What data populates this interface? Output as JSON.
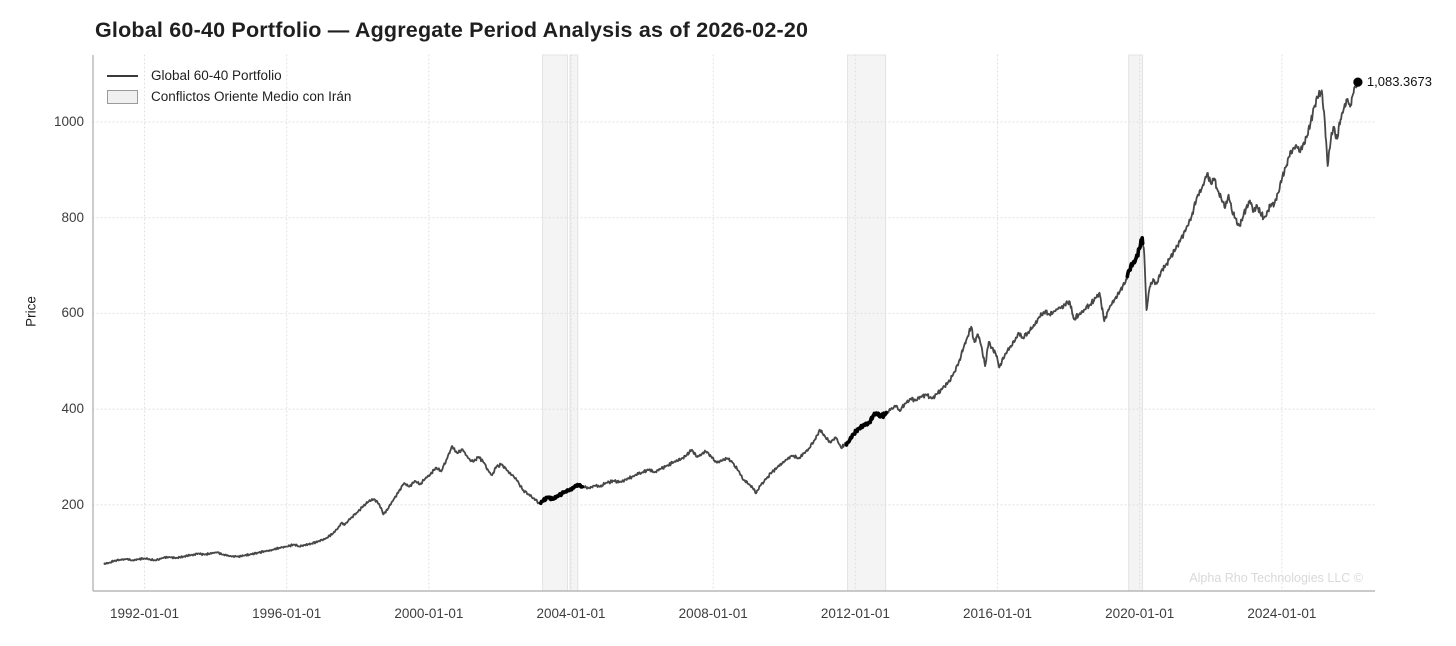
{
  "title": "Global 60-40 Portfolio — Aggregate Period Analysis as of 2026-02-20",
  "watermark": "Alpha Rho Technologies LLC ©",
  "legend": {
    "series_label": "Global 60-40 Portfolio",
    "band_label": "Conflictos Oriente Medio con Irán"
  },
  "annotation": {
    "label": "1,083.3673"
  },
  "colors": {
    "line": "#474747",
    "highlight_line": "#000000",
    "band_fill": "#f4f4f4",
    "band_stroke": "#e3e3e3",
    "grid": "#dedede",
    "spine": "#ababab",
    "tick_text": "#3d3d3d",
    "title_text": "#1f1f1f",
    "watermark_text": "#d9d9d9"
  },
  "chart_data": {
    "type": "line",
    "title": "Global 60-40 Portfolio — Aggregate Period Analysis as of 2026-02-20",
    "xlabel": "",
    "ylabel": "Price",
    "grid": true,
    "legend_position": "top-left",
    "x_tick_labels": [
      "1992-01-01",
      "1996-01-01",
      "2000-01-01",
      "2004-01-01",
      "2008-01-01",
      "2012-01-01",
      "2016-01-01",
      "2020-01-01",
      "2024-01-01"
    ],
    "y_ticks": [
      200,
      400,
      600,
      800,
      1000
    ],
    "x_range": [
      1990.55,
      2026.62
    ],
    "y_range": [
      20,
      1140
    ],
    "series": [
      {
        "name": "Global 60-40 Portfolio",
        "points": [
          [
            1990.85,
            76
          ],
          [
            1991.0,
            79
          ],
          [
            1991.15,
            83
          ],
          [
            1991.3,
            85
          ],
          [
            1991.5,
            87
          ],
          [
            1991.65,
            84
          ],
          [
            1991.8,
            86
          ],
          [
            1992.0,
            88
          ],
          [
            1992.15,
            86
          ],
          [
            1992.3,
            84
          ],
          [
            1992.5,
            89
          ],
          [
            1992.7,
            91
          ],
          [
            1992.9,
            89
          ],
          [
            1993.1,
            92
          ],
          [
            1993.3,
            95
          ],
          [
            1993.5,
            98
          ],
          [
            1993.7,
            96
          ],
          [
            1993.9,
            99
          ],
          [
            1994.05,
            101
          ],
          [
            1994.2,
            96
          ],
          [
            1994.4,
            93
          ],
          [
            1994.6,
            92
          ],
          [
            1994.8,
            94
          ],
          [
            1995.0,
            97
          ],
          [
            1995.2,
            100
          ],
          [
            1995.4,
            103
          ],
          [
            1995.6,
            106
          ],
          [
            1995.8,
            110
          ],
          [
            1996.0,
            113
          ],
          [
            1996.2,
            117
          ],
          [
            1996.35,
            113
          ],
          [
            1996.5,
            116
          ],
          [
            1996.7,
            119
          ],
          [
            1996.9,
            124
          ],
          [
            1997.1,
            130
          ],
          [
            1997.3,
            140
          ],
          [
            1997.45,
            152
          ],
          [
            1997.55,
            163
          ],
          [
            1997.62,
            158
          ],
          [
            1997.8,
            172
          ],
          [
            1998.0,
            185
          ],
          [
            1998.15,
            197
          ],
          [
            1998.3,
            207
          ],
          [
            1998.45,
            212
          ],
          [
            1998.6,
            202
          ],
          [
            1998.72,
            180
          ],
          [
            1998.85,
            192
          ],
          [
            1999.0,
            210
          ],
          [
            1999.15,
            228
          ],
          [
            1999.3,
            245
          ],
          [
            1999.45,
            238
          ],
          [
            1999.6,
            250
          ],
          [
            1999.75,
            243
          ],
          [
            1999.9,
            255
          ],
          [
            2000.05,
            265
          ],
          [
            2000.2,
            278
          ],
          [
            2000.35,
            270
          ],
          [
            2000.5,
            295
          ],
          [
            2000.65,
            323
          ],
          [
            2000.8,
            308
          ],
          [
            2000.95,
            316
          ],
          [
            2001.1,
            298
          ],
          [
            2001.25,
            290
          ],
          [
            2001.4,
            300
          ],
          [
            2001.55,
            288
          ],
          [
            2001.7,
            268
          ],
          [
            2001.78,
            262
          ],
          [
            2001.9,
            280
          ],
          [
            2002.05,
            285
          ],
          [
            2002.2,
            272
          ],
          [
            2002.35,
            262
          ],
          [
            2002.5,
            250
          ],
          [
            2002.65,
            230
          ],
          [
            2002.8,
            222
          ],
          [
            2002.95,
            214
          ],
          [
            2003.1,
            203
          ],
          [
            2003.2,
            208
          ],
          [
            2003.35,
            216
          ],
          [
            2003.5,
            212
          ],
          [
            2003.65,
            220
          ],
          [
            2003.8,
            226
          ],
          [
            2003.95,
            230
          ],
          [
            2004.1,
            238
          ],
          [
            2004.2,
            242
          ],
          [
            2004.35,
            238
          ],
          [
            2004.5,
            235
          ],
          [
            2004.65,
            240
          ],
          [
            2004.8,
            238
          ],
          [
            2005.0,
            246
          ],
          [
            2005.2,
            250
          ],
          [
            2005.4,
            248
          ],
          [
            2005.6,
            255
          ],
          [
            2005.8,
            262
          ],
          [
            2006.0,
            268
          ],
          [
            2006.2,
            274
          ],
          [
            2006.35,
            268
          ],
          [
            2006.5,
            275
          ],
          [
            2006.7,
            282
          ],
          [
            2006.9,
            290
          ],
          [
            2007.1,
            296
          ],
          [
            2007.25,
            304
          ],
          [
            2007.4,
            315
          ],
          [
            2007.55,
            300
          ],
          [
            2007.7,
            308
          ],
          [
            2007.8,
            311
          ],
          [
            2007.95,
            300
          ],
          [
            2008.1,
            288
          ],
          [
            2008.25,
            293
          ],
          [
            2008.4,
            297
          ],
          [
            2008.55,
            288
          ],
          [
            2008.7,
            272
          ],
          [
            2008.85,
            252
          ],
          [
            2009.0,
            243
          ],
          [
            2009.1,
            237
          ],
          [
            2009.2,
            224
          ],
          [
            2009.35,
            243
          ],
          [
            2009.5,
            255
          ],
          [
            2009.65,
            268
          ],
          [
            2009.8,
            278
          ],
          [
            2009.95,
            288
          ],
          [
            2010.1,
            297
          ],
          [
            2010.25,
            303
          ],
          [
            2010.4,
            297
          ],
          [
            2010.55,
            308
          ],
          [
            2010.7,
            318
          ],
          [
            2010.85,
            335
          ],
          [
            2011.0,
            357
          ],
          [
            2011.15,
            342
          ],
          [
            2011.3,
            330
          ],
          [
            2011.45,
            341
          ],
          [
            2011.6,
            319
          ],
          [
            2011.7,
            327
          ],
          [
            2011.8,
            331
          ],
          [
            2011.95,
            348
          ],
          [
            2012.1,
            360
          ],
          [
            2012.25,
            367
          ],
          [
            2012.4,
            372
          ],
          [
            2012.5,
            386
          ],
          [
            2012.6,
            392
          ],
          [
            2012.7,
            384
          ],
          [
            2012.85,
            390
          ],
          [
            2013.0,
            400
          ],
          [
            2013.15,
            407
          ],
          [
            2013.25,
            396
          ],
          [
            2013.4,
            412
          ],
          [
            2013.55,
            422
          ],
          [
            2013.7,
            418
          ],
          [
            2013.85,
            426
          ],
          [
            2014.0,
            430
          ],
          [
            2014.15,
            422
          ],
          [
            2014.3,
            432
          ],
          [
            2014.45,
            443
          ],
          [
            2014.6,
            455
          ],
          [
            2014.75,
            472
          ],
          [
            2014.9,
            495
          ],
          [
            2015.05,
            530
          ],
          [
            2015.15,
            550
          ],
          [
            2015.26,
            572
          ],
          [
            2015.35,
            540
          ],
          [
            2015.45,
            556
          ],
          [
            2015.55,
            530
          ],
          [
            2015.65,
            490
          ],
          [
            2015.75,
            540
          ],
          [
            2015.85,
            528
          ],
          [
            2015.95,
            515
          ],
          [
            2016.05,
            487
          ],
          [
            2016.2,
            512
          ],
          [
            2016.35,
            530
          ],
          [
            2016.5,
            545
          ],
          [
            2016.6,
            559
          ],
          [
            2016.72,
            548
          ],
          [
            2016.85,
            560
          ],
          [
            2017.0,
            572
          ],
          [
            2017.15,
            590
          ],
          [
            2017.3,
            603
          ],
          [
            2017.45,
            598
          ],
          [
            2017.6,
            605
          ],
          [
            2017.75,
            612
          ],
          [
            2017.9,
            618
          ],
          [
            2018.03,
            625
          ],
          [
            2018.15,
            588
          ],
          [
            2018.3,
            598
          ],
          [
            2018.45,
            608
          ],
          [
            2018.6,
            618
          ],
          [
            2018.75,
            632
          ],
          [
            2018.87,
            643
          ],
          [
            2019.0,
            584
          ],
          [
            2019.15,
            612
          ],
          [
            2019.3,
            630
          ],
          [
            2019.45,
            648
          ],
          [
            2019.6,
            665
          ],
          [
            2019.7,
            690
          ],
          [
            2019.8,
            702
          ],
          [
            2019.9,
            716
          ],
          [
            2020.0,
            736
          ],
          [
            2020.07,
            758
          ],
          [
            2020.13,
            722
          ],
          [
            2020.19,
            607
          ],
          [
            2020.28,
            655
          ],
          [
            2020.38,
            672
          ],
          [
            2020.48,
            662
          ],
          [
            2020.6,
            688
          ],
          [
            2020.72,
            700
          ],
          [
            2020.85,
            715
          ],
          [
            2021.0,
            733
          ],
          [
            2021.15,
            755
          ],
          [
            2021.3,
            775
          ],
          [
            2021.45,
            800
          ],
          [
            2021.6,
            841
          ],
          [
            2021.75,
            862
          ],
          [
            2021.9,
            893
          ],
          [
            2022.0,
            872
          ],
          [
            2022.1,
            882
          ],
          [
            2022.2,
            856
          ],
          [
            2022.3,
            838
          ],
          [
            2022.4,
            820
          ],
          [
            2022.5,
            848
          ],
          [
            2022.6,
            812
          ],
          [
            2022.7,
            798
          ],
          [
            2022.8,
            783
          ],
          [
            2022.9,
            800
          ],
          [
            2023.0,
            822
          ],
          [
            2023.1,
            836
          ],
          [
            2023.2,
            812
          ],
          [
            2023.3,
            826
          ],
          [
            2023.4,
            808
          ],
          [
            2023.5,
            800
          ],
          [
            2023.6,
            815
          ],
          [
            2023.7,
            825
          ],
          [
            2023.8,
            832
          ],
          [
            2023.9,
            852
          ],
          [
            2024.0,
            880
          ],
          [
            2024.1,
            905
          ],
          [
            2024.2,
            927
          ],
          [
            2024.3,
            940
          ],
          [
            2024.4,
            952
          ],
          [
            2024.5,
            938
          ],
          [
            2024.6,
            955
          ],
          [
            2024.7,
            968
          ],
          [
            2024.8,
            995
          ],
          [
            2024.9,
            1030
          ],
          [
            2025.0,
            1052
          ],
          [
            2025.12,
            1066
          ],
          [
            2025.2,
            1010
          ],
          [
            2025.29,
            908
          ],
          [
            2025.38,
            965
          ],
          [
            2025.45,
            990
          ],
          [
            2025.55,
            965
          ],
          [
            2025.65,
            1005
          ],
          [
            2025.75,
            1030
          ],
          [
            2025.85,
            1048
          ],
          [
            2025.92,
            1032
          ],
          [
            2026.0,
            1058
          ],
          [
            2026.07,
            1075
          ],
          [
            2026.139,
            1083.3673
          ]
        ]
      }
    ],
    "conflict_bands": {
      "label": "Conflictos Oriente Medio con Irán",
      "ranges_decimal_years": [
        [
          2003.2,
          2003.9
        ],
        [
          2003.97,
          2004.19
        ],
        [
          2011.78,
          2012.85
        ],
        [
          2019.69,
          2020.08
        ]
      ]
    },
    "highlight_segments_decimal_years": [
      [
        2003.14,
        2004.32
      ],
      [
        2011.74,
        2012.88
      ],
      [
        2019.64,
        2020.09
      ]
    ],
    "end_point": {
      "t": 2026.139,
      "value": 1083.3673,
      "label": "1,083.3673",
      "as_of": "2026-02-20"
    }
  }
}
